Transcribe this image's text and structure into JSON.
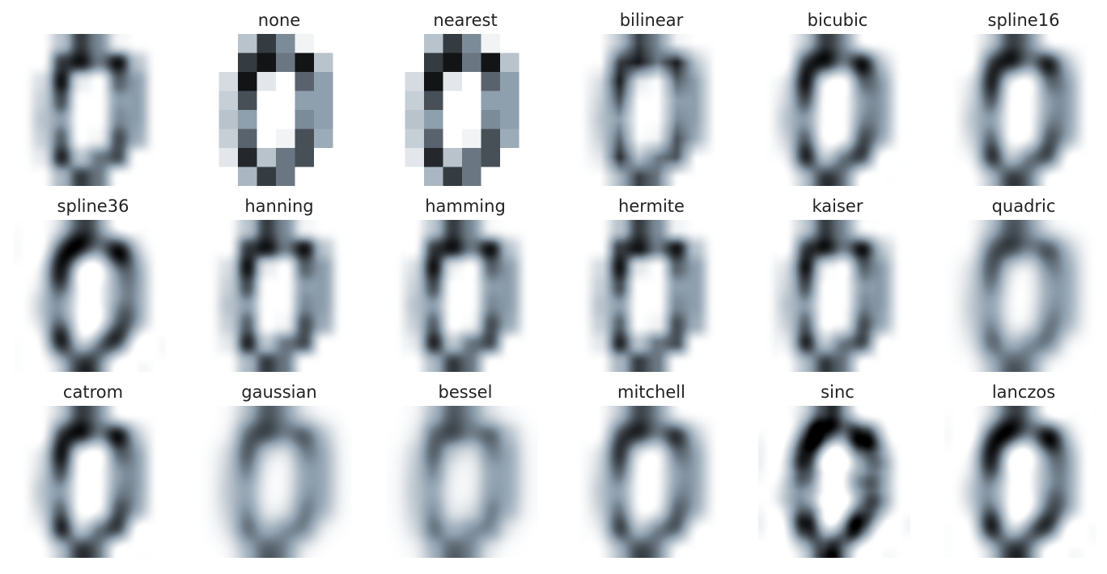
{
  "chart_data": {
    "type": "heatmap",
    "colormap": "bone_r",
    "colors": {
      "low": "#ffffff",
      "mid": "#8e9fae",
      "high": "#000000"
    },
    "image": [
      [
        0,
        0,
        5,
        13,
        9,
        1,
        0,
        0
      ],
      [
        0,
        0,
        13,
        15,
        10,
        15,
        5,
        0
      ],
      [
        0,
        3,
        15,
        2,
        0,
        11,
        8,
        0
      ],
      [
        0,
        4,
        12,
        0,
        0,
        8,
        8,
        0
      ],
      [
        0,
        5,
        8,
        0,
        0,
        9,
        8,
        0
      ],
      [
        0,
        4,
        11,
        0,
        1,
        12,
        7,
        0
      ],
      [
        0,
        2,
        14,
        5,
        10,
        12,
        0,
        0
      ],
      [
        0,
        0,
        6,
        13,
        10,
        0,
        0,
        0
      ]
    ],
    "value_range": [
      0,
      16
    ],
    "panels": [
      {
        "title": "",
        "method": "antialiased"
      },
      {
        "title": "none",
        "method": "none"
      },
      {
        "title": "nearest",
        "method": "nearest"
      },
      {
        "title": "bilinear",
        "method": "bilinear"
      },
      {
        "title": "bicubic",
        "method": "bicubic"
      },
      {
        "title": "spline16",
        "method": "spline16"
      },
      {
        "title": "spline36",
        "method": "spline36"
      },
      {
        "title": "hanning",
        "method": "hanning"
      },
      {
        "title": "hamming",
        "method": "hamming"
      },
      {
        "title": "hermite",
        "method": "hermite"
      },
      {
        "title": "kaiser",
        "method": "kaiser"
      },
      {
        "title": "quadric",
        "method": "quadric"
      },
      {
        "title": "catrom",
        "method": "catrom"
      },
      {
        "title": "gaussian",
        "method": "gaussian"
      },
      {
        "title": "bessel",
        "method": "bessel"
      },
      {
        "title": "mitchell",
        "method": "mitchell"
      },
      {
        "title": "sinc",
        "method": "sinc"
      },
      {
        "title": "lanczos",
        "method": "lanczos"
      }
    ],
    "grid": false
  }
}
